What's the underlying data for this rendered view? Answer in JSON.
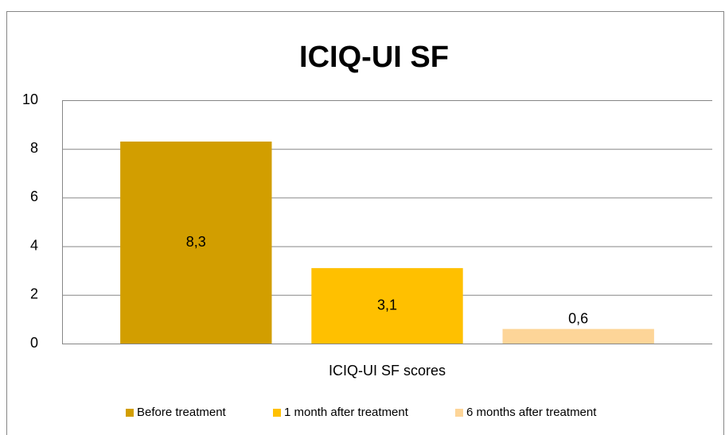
{
  "chart_data": {
    "type": "bar",
    "title": "ICIQ-UI SF",
    "categories": [
      "ICIQ-UI SF scores"
    ],
    "series": [
      {
        "name": "Before treatment",
        "color": "#d29e00",
        "values": [
          8.3
        ],
        "value_labels": [
          "8,3"
        ]
      },
      {
        "name": "1 month after treatment",
        "color": "#ffc000",
        "values": [
          3.1
        ],
        "value_labels": [
          "3,1"
        ]
      },
      {
        "name": "6 months after treatment",
        "color": "#fdd598",
        "values": [
          0.6
        ],
        "value_labels": [
          "0,6"
        ]
      }
    ],
    "ylim": [
      0,
      10
    ],
    "yticks": [
      0,
      2,
      4,
      6,
      8,
      10
    ],
    "grid": true,
    "legend": "bottom"
  }
}
